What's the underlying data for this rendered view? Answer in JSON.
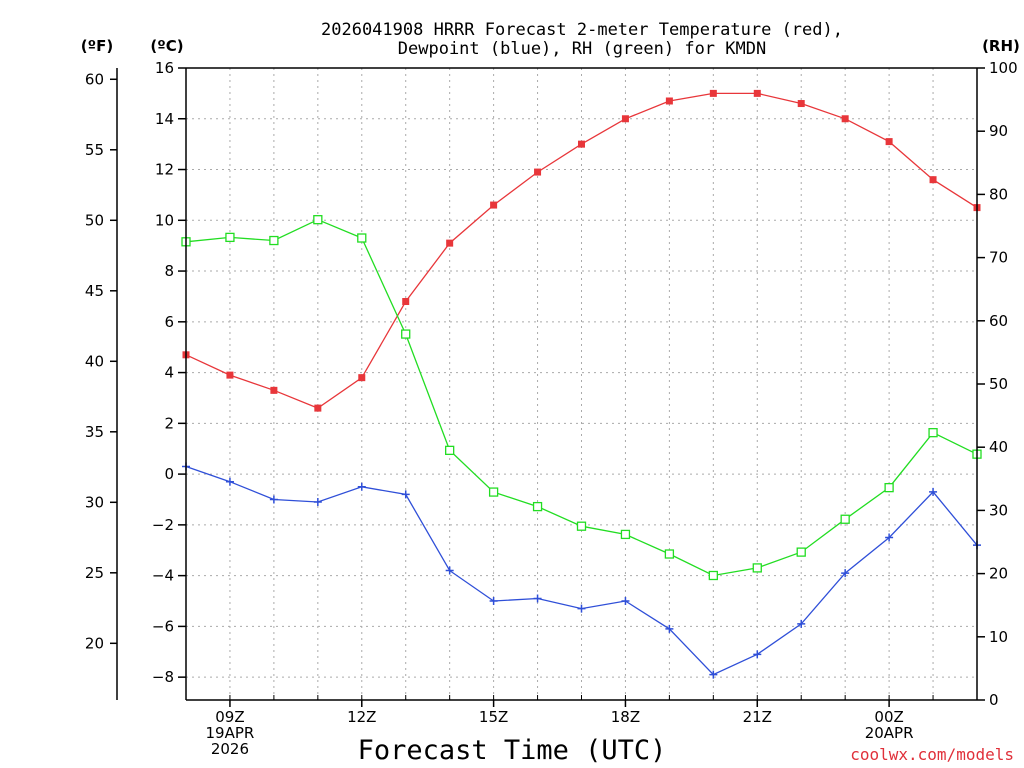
{
  "chart_data": {
    "type": "line",
    "title_line1": "2026041908 HRRR Forecast 2-meter Temperature (red),",
    "title_line2": "Dewpoint (blue), RH (green) for KMDN",
    "xlabel": "Forecast Time (UTC)",
    "credit": "coolwx.com/models",
    "left_unit_f": "(ºF)",
    "left_unit_c": "(ºC)",
    "right_unit": "(RH)",
    "celsius_ylim": [
      -8.9,
      16
    ],
    "celsius_ticks": [
      16,
      14,
      12,
      10,
      8,
      6,
      4,
      2,
      0,
      -2,
      -4,
      -6,
      -8
    ],
    "fahrenheit_ticks": [
      60,
      55,
      50,
      45,
      40,
      35,
      30,
      25,
      20
    ],
    "rh_ylim": [
      0,
      100
    ],
    "rh_ticks": [
      100,
      90,
      80,
      70,
      60,
      50,
      40,
      30,
      20,
      10,
      0
    ],
    "x_range_hours": [
      8,
      26
    ],
    "x_ticks": [
      {
        "hour": 9,
        "lines": [
          "09Z",
          "19APR",
          "2026"
        ]
      },
      {
        "hour": 12,
        "lines": [
          "12Z"
        ]
      },
      {
        "hour": 15,
        "lines": [
          "15Z"
        ]
      },
      {
        "hour": 18,
        "lines": [
          "18Z"
        ]
      },
      {
        "hour": 21,
        "lines": [
          "21Z"
        ]
      },
      {
        "hour": 24,
        "lines": [
          "00Z",
          "20APR"
        ]
      }
    ],
    "x_hours": [
      8,
      9,
      10,
      11,
      12,
      13,
      14,
      15,
      16,
      17,
      18,
      19,
      20,
      21,
      22,
      23,
      24,
      25,
      26
    ],
    "series": [
      {
        "name": "Temperature",
        "color": "#e8363a",
        "axis": "celsius",
        "marker": "filled-square",
        "values": [
          4.7,
          3.9,
          3.3,
          2.6,
          3.8,
          6.8,
          9.1,
          10.6,
          11.9,
          13.0,
          14.0,
          14.7,
          15.0,
          15.0,
          14.6,
          14.0,
          13.1,
          11.6,
          10.5
        ]
      },
      {
        "name": "Dewpoint",
        "color": "#2f4fd8",
        "axis": "celsius",
        "marker": "plus",
        "values": [
          0.3,
          -0.3,
          -1.0,
          -1.1,
          -0.5,
          -0.8,
          -3.8,
          -5.0,
          -4.9,
          -5.3,
          -5.0,
          -6.1,
          -7.9,
          -7.1,
          -5.9,
          -3.9,
          -2.5,
          -0.7,
          -2.8
        ]
      },
      {
        "name": "RH",
        "color": "#22dd22",
        "axis": "rh",
        "marker": "open-square",
        "values": [
          72.5,
          73.2,
          72.7,
          76.0,
          73.1,
          57.9,
          39.5,
          32.9,
          30.6,
          27.5,
          26.2,
          23.1,
          19.7,
          20.9,
          23.4,
          28.6,
          33.6,
          42.3,
          38.9
        ]
      }
    ]
  }
}
